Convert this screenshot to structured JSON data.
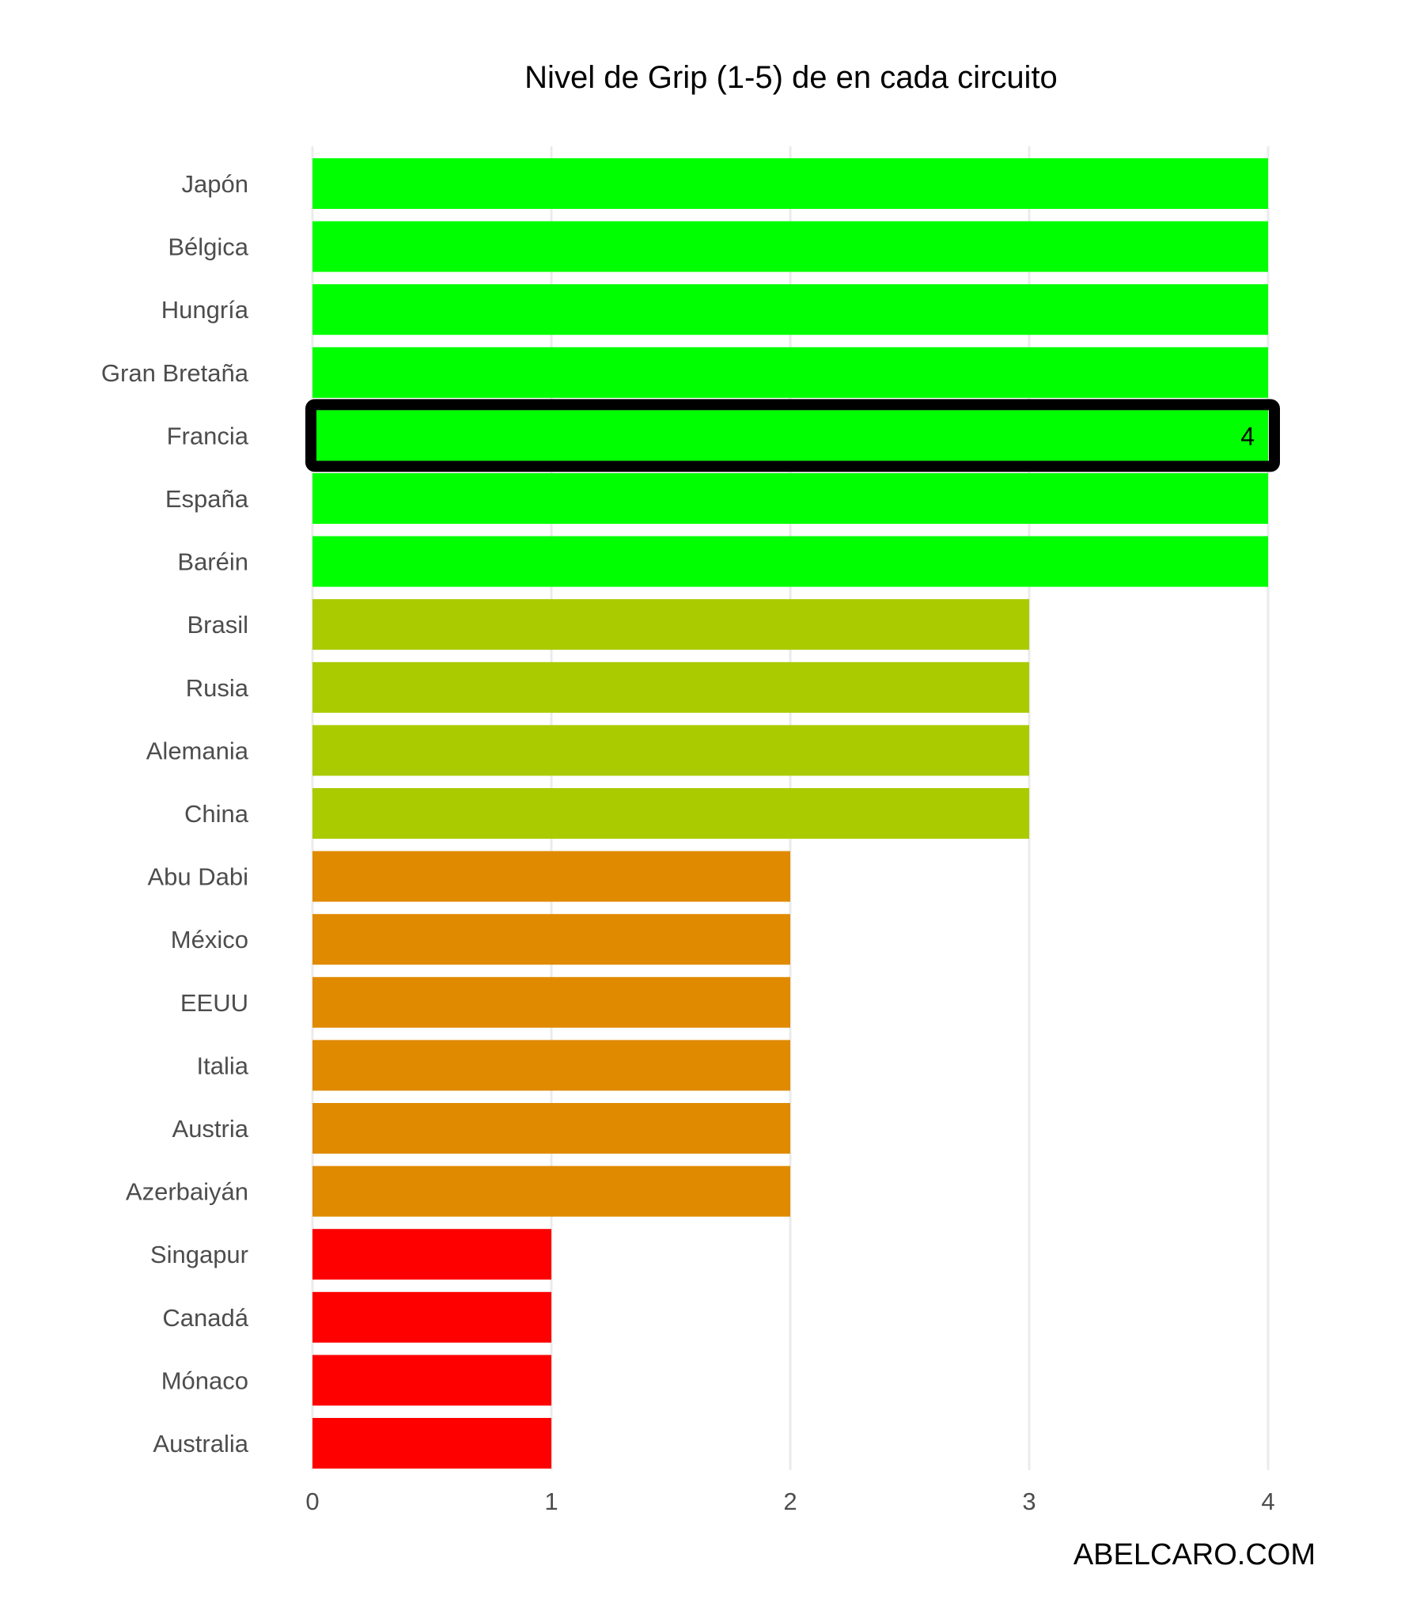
{
  "chart_data": {
    "type": "bar",
    "orientation": "horizontal",
    "title": "Nivel de Grip (1-5) de en cada circuito",
    "xlabel": "",
    "ylabel": "",
    "xlim": [
      0,
      4
    ],
    "xticks": [
      0,
      1,
      2,
      3,
      4
    ],
    "grid": "vertical",
    "legend": "none",
    "categories": [
      "Japón",
      "Bélgica",
      "Hungría",
      "Gran Bretaña",
      "Francia",
      "España",
      "Baréin",
      "Brasil",
      "Rusia",
      "Alemania",
      "China",
      "Abu Dabi",
      "México",
      "EEUU",
      "Italia",
      "Austria",
      "Azerbaiyán",
      "Singapur",
      "Canadá",
      "Mónaco",
      "Australia"
    ],
    "values": [
      4,
      4,
      4,
      4,
      4,
      4,
      4,
      3,
      3,
      3,
      3,
      2,
      2,
      2,
      2,
      2,
      2,
      1,
      1,
      1,
      1
    ],
    "level_colors": {
      "1": "#ff0000",
      "2": "#e08a00",
      "3": "#a9cb00",
      "4": "#00ff00"
    },
    "highlight": {
      "category": "Francia",
      "label": "4",
      "outline_color": "#000000"
    },
    "grid_color": "#ebebeb",
    "watermark": "ABELCARO.COM"
  }
}
